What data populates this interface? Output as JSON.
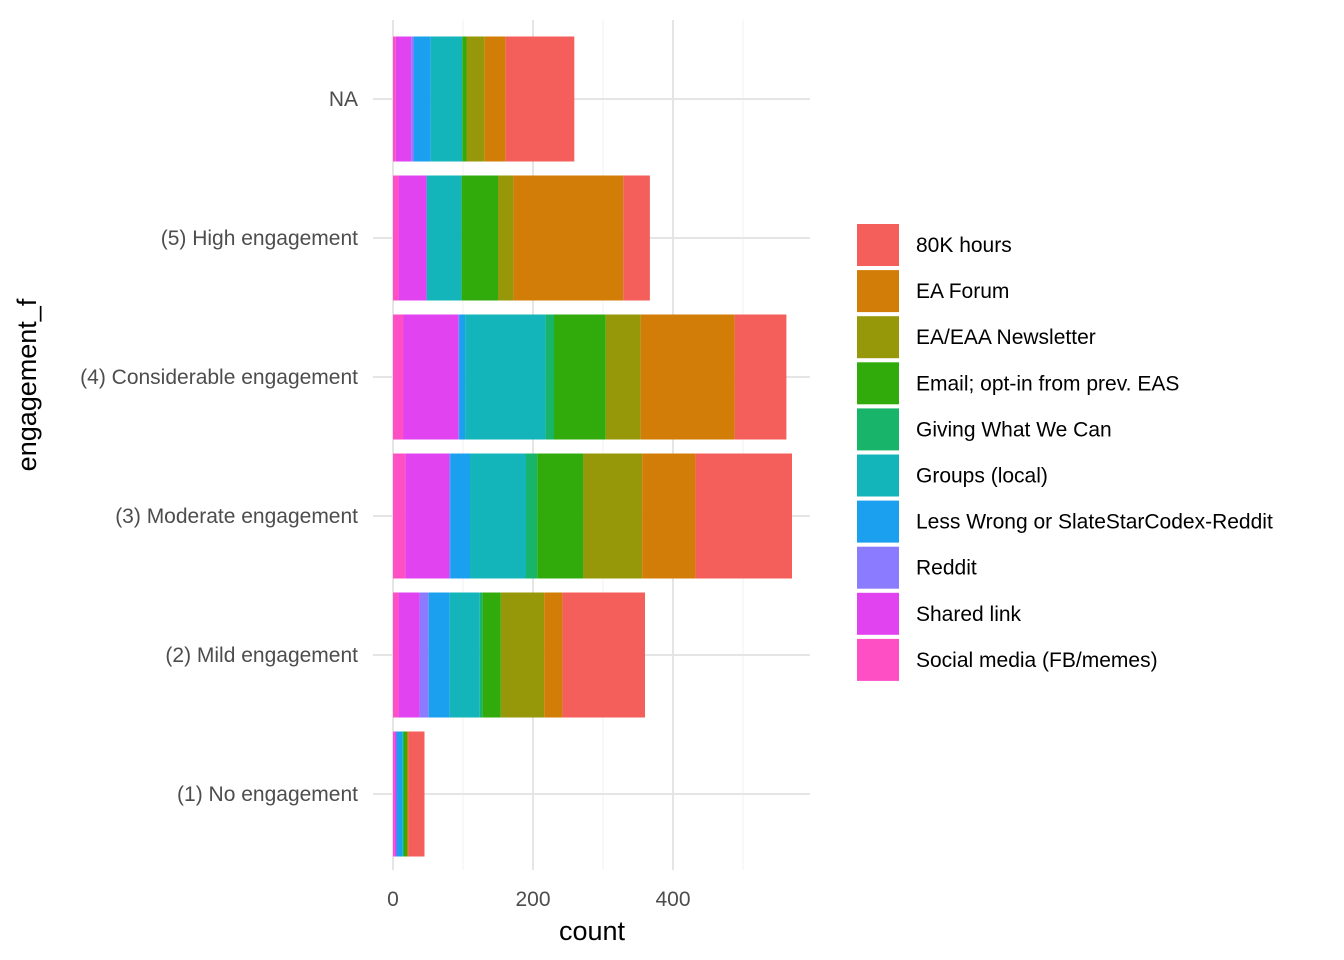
{
  "chart_data": {
    "type": "bar",
    "orientation": "horizontal",
    "stacked": true,
    "xlabel": "count",
    "ylabel": "engagement_f",
    "xlim": [
      0,
      590
    ],
    "xticks": [
      0,
      200,
      400
    ],
    "grid": true,
    "legend_position": "right",
    "categories": [
      "(1) No engagement",
      "(2) Mild engagement",
      "(3) Moderate engagement",
      "(4) Considerable engagement",
      "(5) High engagement",
      "NA"
    ],
    "series": [
      {
        "name": "Social media (FB/memes)",
        "color": "#FF4FC4",
        "values": [
          2,
          8,
          18,
          15,
          8,
          4
        ]
      },
      {
        "name": "Shared link",
        "color": "#E243F0",
        "values": [
          3,
          30,
          62,
          78,
          40,
          22
        ]
      },
      {
        "name": "Reddit",
        "color": "#8B7BFF",
        "values": [
          0,
          13,
          2,
          2,
          0,
          4
        ]
      },
      {
        "name": "Less Wrong or SlateStarCodex-Reddit",
        "color": "#1AA0EE",
        "values": [
          8,
          30,
          28,
          8,
          0,
          24
        ]
      },
      {
        "name": "Groups (local)",
        "color": "#13B5BB",
        "values": [
          2,
          43,
          80,
          115,
          50,
          45
        ]
      },
      {
        "name": "Giving What We Can",
        "color": "#17B46A",
        "values": [
          0,
          4,
          16,
          12,
          0,
          0
        ]
      },
      {
        "name": "Email; opt-in from prev. EAS",
        "color": "#31AB0C",
        "values": [
          5,
          26,
          66,
          74,
          52,
          6
        ]
      },
      {
        "name": "EA/EAA Newsletter",
        "color": "#97970A",
        "values": [
          0,
          62,
          84,
          50,
          22,
          26
        ]
      },
      {
        "name": "EA Forum",
        "color": "#D17D07",
        "values": [
          2,
          26,
          76,
          134,
          157,
          30
        ]
      },
      {
        "name": "80K hours",
        "color": "#F45F5B",
        "values": [
          23,
          118,
          138,
          74,
          38,
          98
        ]
      }
    ],
    "legend_order": [
      "80K hours",
      "EA Forum",
      "EA/EAA Newsletter",
      "Email; opt-in from prev. EAS",
      "Giving What We Can",
      "Groups (local)",
      "Less Wrong or SlateStarCodex-Reddit",
      "Reddit",
      "Shared link",
      "Social media (FB/memes)"
    ]
  }
}
